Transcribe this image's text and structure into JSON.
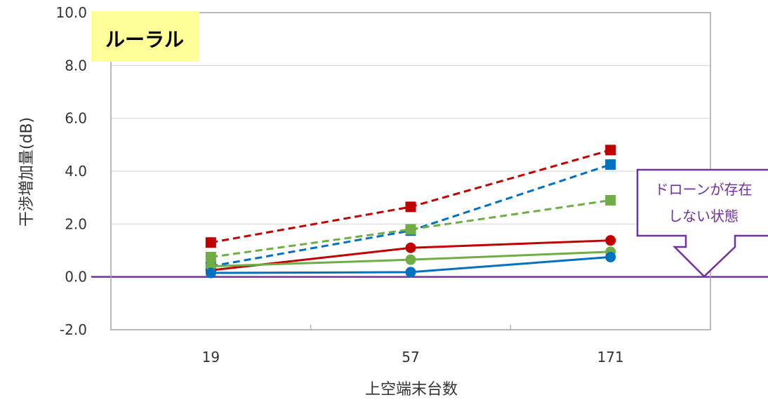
{
  "chart_data": {
    "type": "line",
    "title": "",
    "xlabel": "上空端末台数",
    "ylabel": "干渉増加量(dB)",
    "categories": [
      "19",
      "57",
      "171"
    ],
    "ylim": [
      -2.0,
      10.0
    ],
    "yticks": [
      "-2.0",
      "0.0",
      "2.0",
      "4.0",
      "6.0",
      "8.0",
      "10.0"
    ],
    "grid": true,
    "series": [
      {
        "color": "#C00000",
        "style": "dashed",
        "marker": "square",
        "values": [
          1.3,
          2.65,
          4.8
        ]
      },
      {
        "color": "#0070C0",
        "style": "dashed",
        "marker": "square",
        "values": [
          0.4,
          1.75,
          4.25
        ]
      },
      {
        "color": "#70AD47",
        "style": "dashed",
        "marker": "square",
        "values": [
          0.75,
          1.8,
          2.9
        ]
      },
      {
        "color": "#C00000",
        "style": "solid",
        "marker": "circle",
        "values": [
          0.25,
          1.1,
          1.38
        ]
      },
      {
        "color": "#70AD47",
        "style": "solid",
        "marker": "circle",
        "values": [
          0.4,
          0.65,
          0.95
        ]
      },
      {
        "color": "#0070C0",
        "style": "solid",
        "marker": "circle",
        "values": [
          0.15,
          0.18,
          0.75
        ]
      }
    ],
    "baseline": {
      "value": 0.0,
      "color": "#7030A0"
    },
    "annotations": {
      "corner_label": "ルーラル",
      "corner_label_bg": "#FFFF99",
      "callout_lines": [
        "ドローンが存在",
        "しない状態"
      ],
      "callout_color": "#7030A0"
    }
  }
}
